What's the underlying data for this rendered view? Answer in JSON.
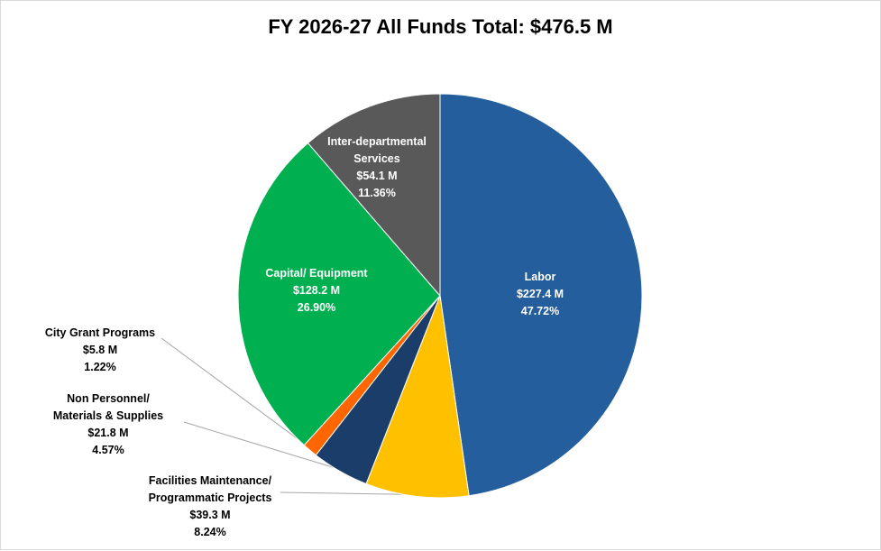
{
  "chart_data": {
    "type": "pie",
    "title": "FY 2026-27 All Funds Total: $476.5 M",
    "slices": [
      {
        "label": "Labor",
        "value": 227.4,
        "value_text": "$227.4 M",
        "percent": 47.72,
        "percent_text": "47.72%",
        "color": "#255e9c"
      },
      {
        "label": "Facilities Maintenance/ Programmatic Projects",
        "value": 39.3,
        "value_text": "$39.3 M",
        "percent": 8.24,
        "percent_text": "8.24%",
        "color": "#ffc000"
      },
      {
        "label": "Non Personnel/ Materials & Supplies",
        "value": 21.8,
        "value_text": "$21.8 M",
        "percent": 4.57,
        "percent_text": "4.57%",
        "color": "#1a3d6a"
      },
      {
        "label": "City Grant Programs",
        "value": 5.8,
        "value_text": "$5.8 M",
        "percent": 1.22,
        "percent_text": "1.22%",
        "color": "#ff6600"
      },
      {
        "label": "Capital/ Equipment",
        "value": 128.2,
        "value_text": "$128.2 M",
        "percent": 26.9,
        "percent_text": "26.90%",
        "color": "#00b050"
      },
      {
        "label": "Inter-departmental Services",
        "value": 54.1,
        "value_text": "$54.1 M",
        "percent": 11.36,
        "percent_text": "11.36%",
        "color": "#595959"
      }
    ]
  }
}
